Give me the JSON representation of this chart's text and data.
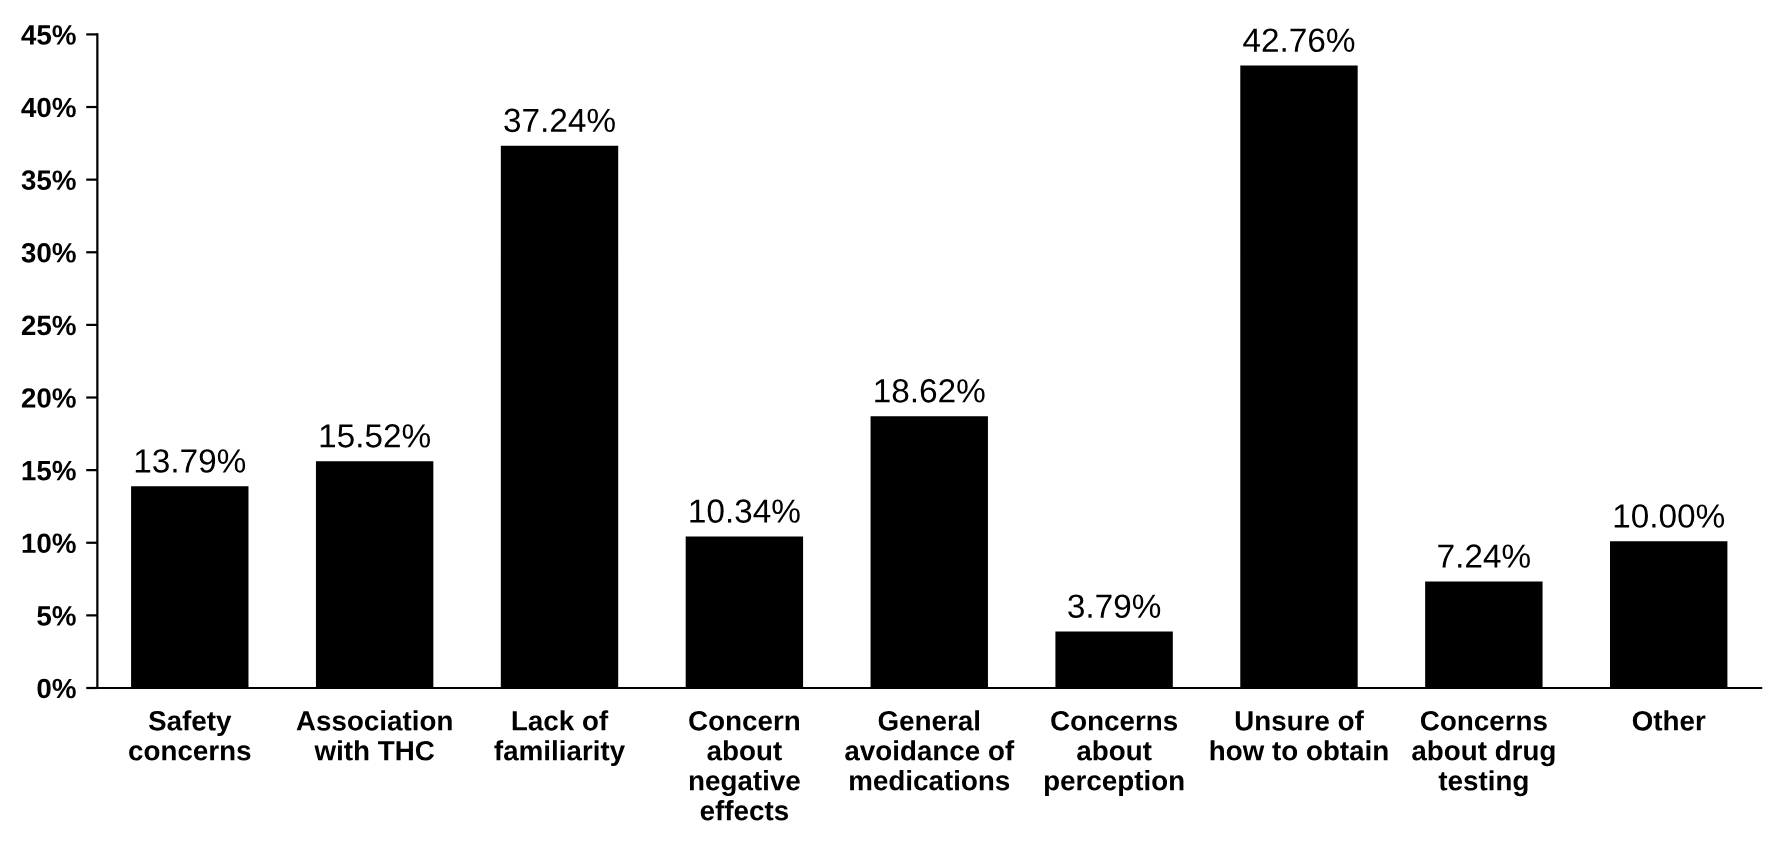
{
  "chart_data": {
    "type": "bar",
    "categories": [
      "Safety\nconcerns",
      "Association\nwith THC",
      "Lack of\nfamiliarity",
      "Concern\nabout\nnegative\neffects",
      "General\navoidance of\nmedications",
      "Concerns\nabout\nperception",
      "Unsure of\nhow to obtain",
      "Concerns\nabout drug\ntesting",
      "Other"
    ],
    "values": [
      13.79,
      15.52,
      37.24,
      10.34,
      18.62,
      3.79,
      42.76,
      7.24,
      10.0
    ],
    "value_labels": [
      "13.79%",
      "15.52%",
      "37.24%",
      "10.34%",
      "18.62%",
      "3.79%",
      "42.76%",
      "7.24%",
      "10.00%"
    ],
    "color": "#000000",
    "ylim": [
      0,
      45
    ],
    "yticks": [
      {
        "value": 0,
        "label": "0%"
      },
      {
        "value": 5,
        "label": "5%"
      },
      {
        "value": 10,
        "label": "10%"
      },
      {
        "value": 15,
        "label": "15%"
      },
      {
        "value": 20,
        "label": "20%"
      },
      {
        "value": 25,
        "label": "25%"
      },
      {
        "value": 30,
        "label": "30%"
      },
      {
        "value": 35,
        "label": "35%"
      },
      {
        "value": 40,
        "label": "40%"
      },
      {
        "value": 45,
        "label": "45%"
      }
    ],
    "grid": false,
    "legend": false
  }
}
